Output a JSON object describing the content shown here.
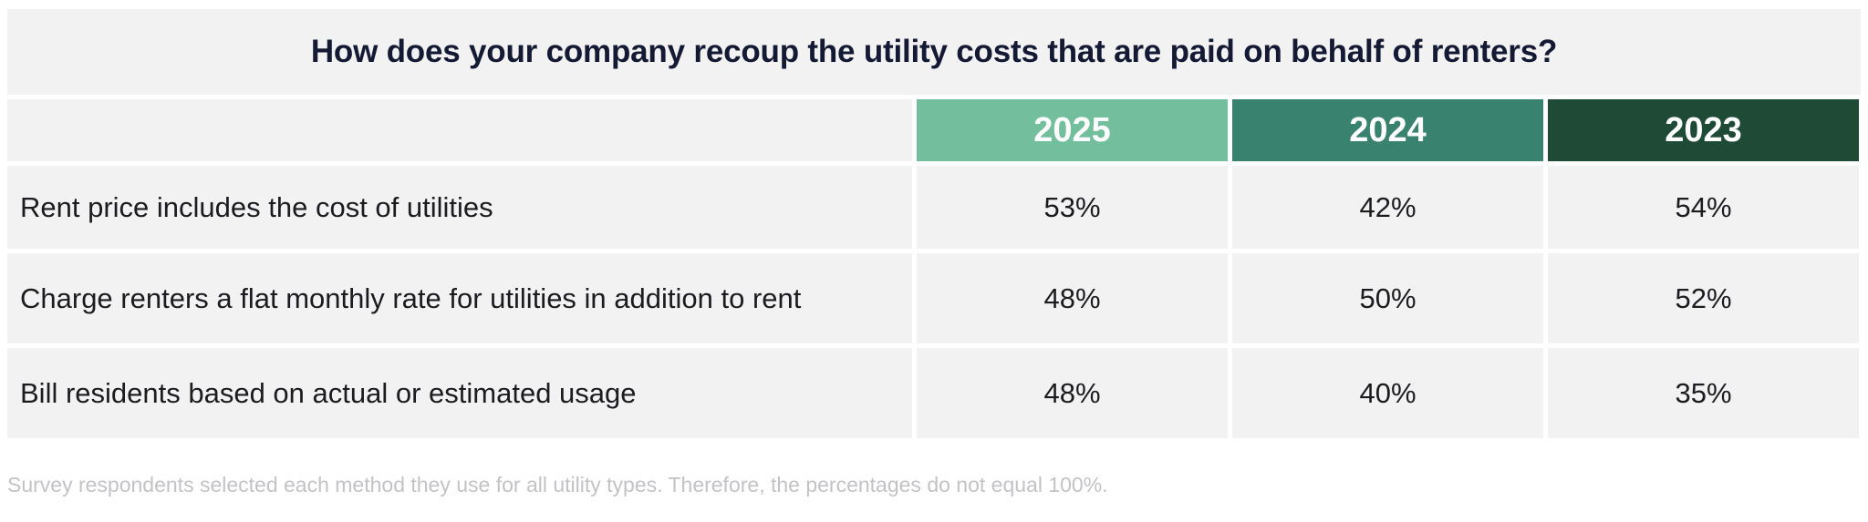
{
  "chart_data": {
    "type": "table",
    "title": "How does your company recoup the utility costs that are paid on behalf of renters?",
    "columns": [
      "2025",
      "2024",
      "2023"
    ],
    "column_colors": [
      "#73be9c",
      "#3a8270",
      "#1f4b36"
    ],
    "rows": [
      {
        "label": "Rent price includes the cost of utilities",
        "values": [
          "53%",
          "42%",
          "54%"
        ]
      },
      {
        "label": "Charge renters a flat monthly rate for utilities in addition to rent",
        "values": [
          "48%",
          "50%",
          "52%"
        ]
      },
      {
        "label": "Bill residents based on actual or estimated usage",
        "values": [
          "48%",
          "40%",
          "35%"
        ]
      }
    ],
    "footnote": "Survey respondents selected each method they use for all utility types. Therefore, the percentages do not equal 100%."
  }
}
